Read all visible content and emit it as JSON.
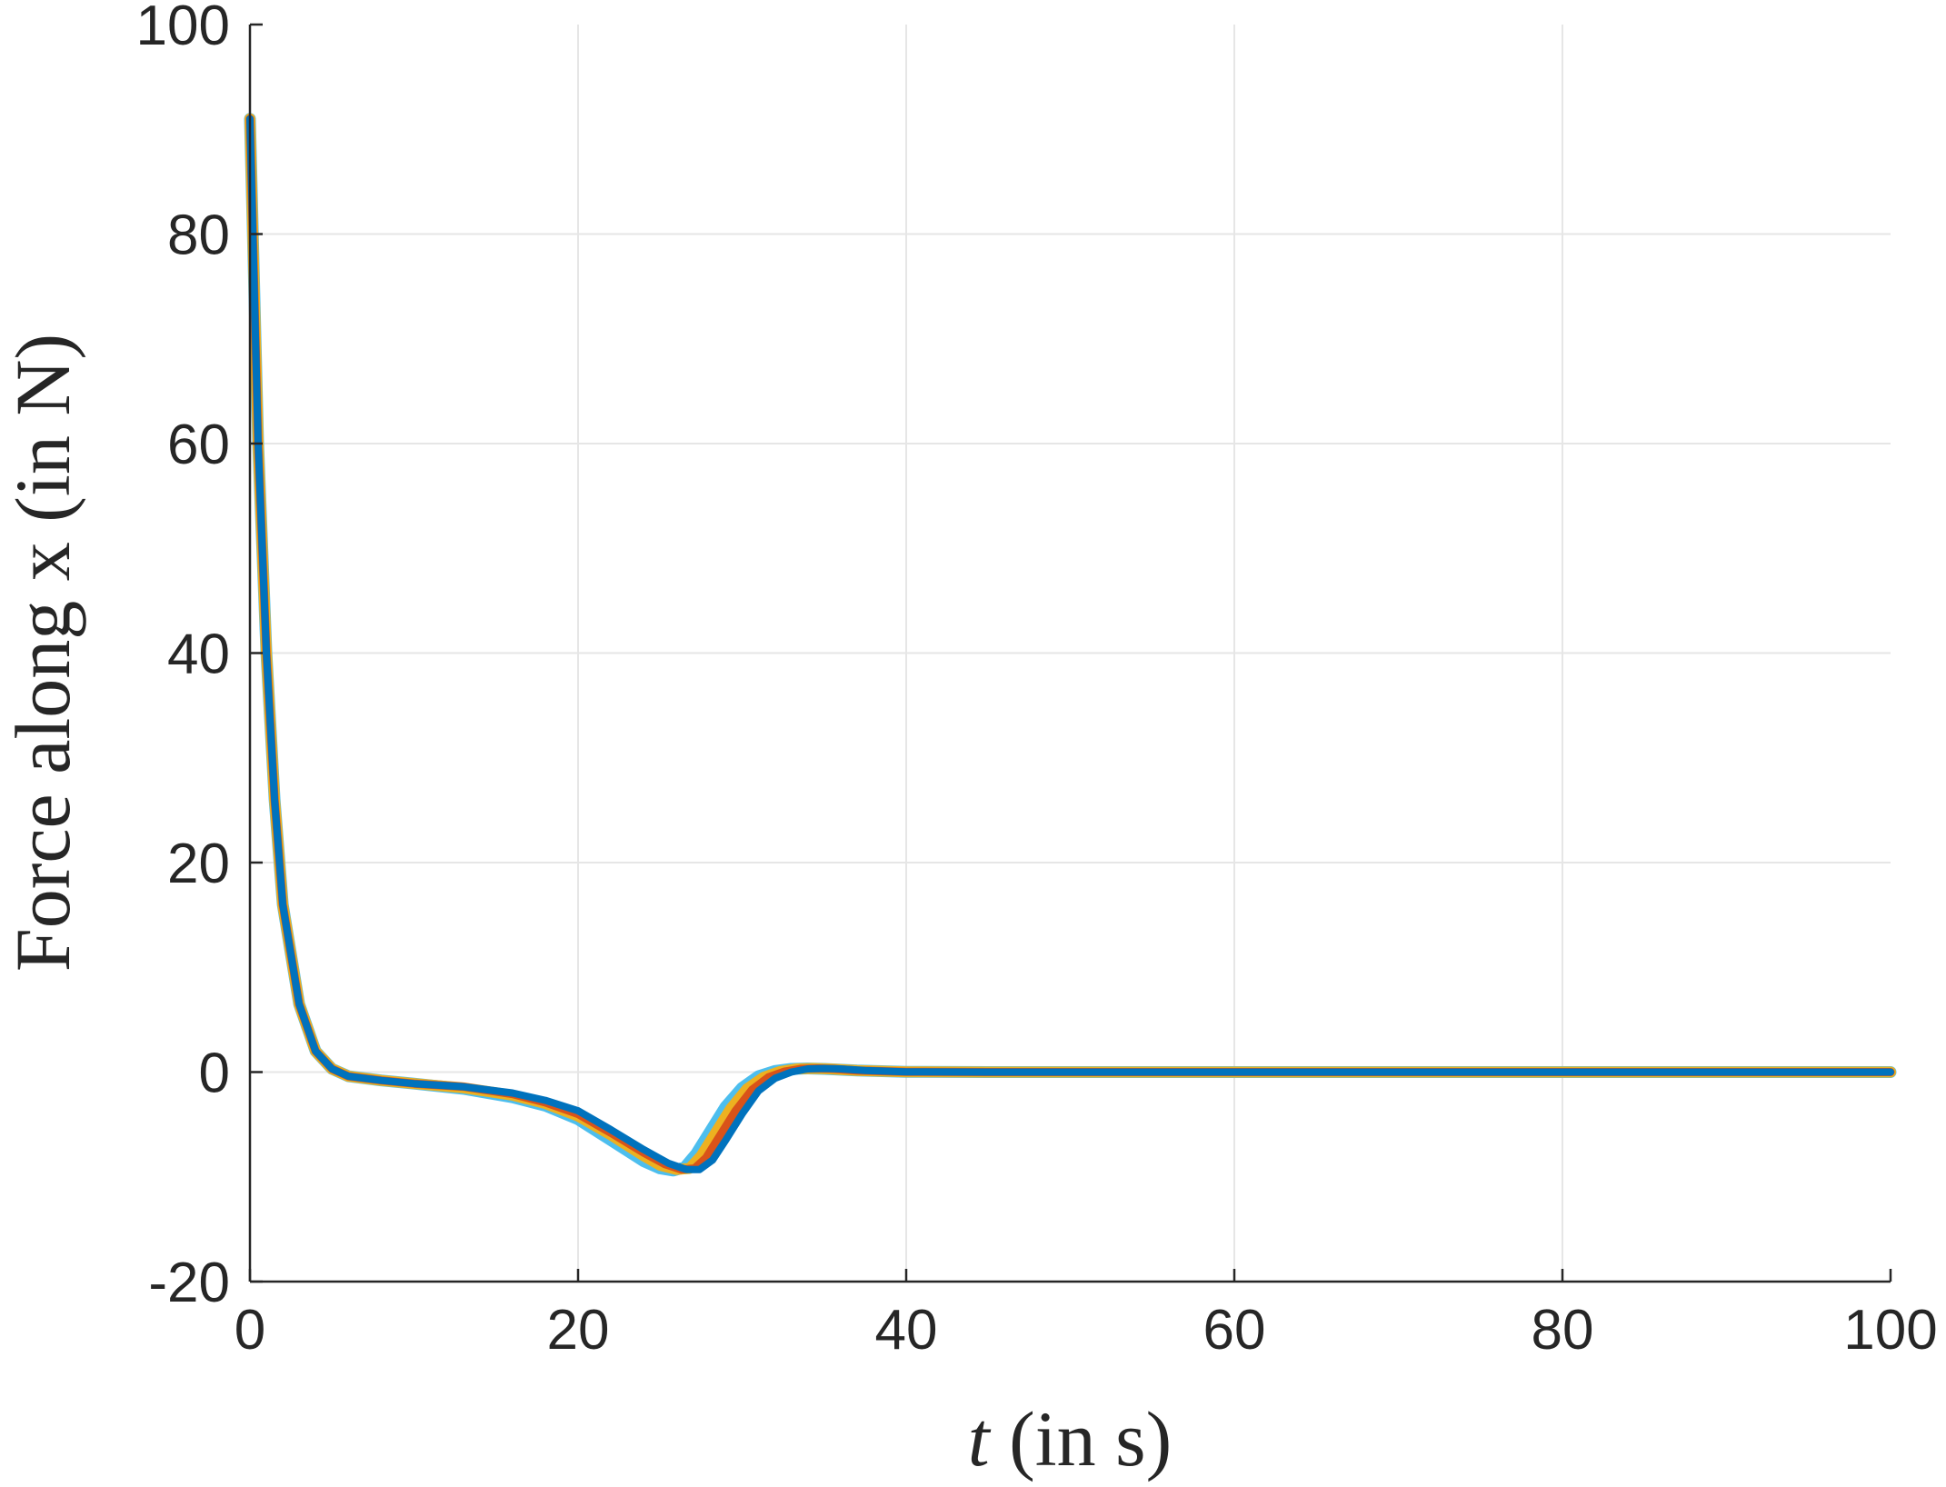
{
  "chart_data": {
    "type": "line",
    "title": "",
    "xlabel_italic": "t",
    "xlabel_rest": " (in s)",
    "ylabel": "Force along x (in N)",
    "xlim": [
      0,
      100
    ],
    "ylim": [
      -20,
      100
    ],
    "xticks": [
      0,
      20,
      40,
      60,
      80,
      100
    ],
    "yticks": [
      -20,
      0,
      20,
      40,
      60,
      80,
      100
    ],
    "xtick_labels": [
      "0",
      "20",
      "40",
      "60",
      "80",
      "100"
    ],
    "ytick_labels": [
      "-20",
      "0",
      "20",
      "40",
      "60",
      "80",
      "100"
    ],
    "grid": true,
    "legend": "none",
    "series": [
      {
        "color": "#4DBEEE",
        "x": [
          0,
          0.5,
          1,
          1.5,
          2,
          3,
          4,
          5,
          6,
          8,
          10,
          13,
          16,
          18,
          20,
          22,
          24,
          25,
          25.8,
          26.5,
          27.2,
          28,
          29,
          30,
          31,
          32,
          33,
          34,
          35,
          37,
          40,
          45,
          50,
          60,
          70,
          80,
          90,
          100
        ],
        "y": [
          91,
          60,
          40,
          26,
          16,
          6.5,
          2,
          0.3,
          -0.4,
          -0.8,
          -1.1,
          -1.6,
          -2.4,
          -3.2,
          -4.5,
          -6.5,
          -8.5,
          -9.2,
          -9.4,
          -9.1,
          -7.8,
          -5.8,
          -3.3,
          -1.5,
          -0.4,
          0.1,
          0.3,
          0.35,
          0.3,
          0.15,
          0.03,
          0,
          0,
          0,
          0,
          0,
          0,
          0
        ]
      },
      {
        "color": "#EDB120",
        "x": [
          0,
          0.5,
          1,
          1.5,
          2,
          3,
          4,
          5,
          6,
          8,
          10,
          13,
          16,
          18,
          20,
          22,
          24,
          25,
          26,
          26.8,
          27.5,
          28.3,
          29.3,
          30.3,
          31.3,
          32.3,
          33.3,
          34.3,
          35.3,
          37,
          40,
          45,
          50,
          60,
          70,
          80,
          90,
          100
        ],
        "y": [
          91,
          60,
          40,
          26,
          16,
          6.5,
          2,
          0.3,
          -0.4,
          -0.8,
          -1.1,
          -1.5,
          -2.2,
          -3.0,
          -4.2,
          -6.0,
          -8.0,
          -8.9,
          -9.3,
          -9.2,
          -8.0,
          -6.0,
          -3.5,
          -1.6,
          -0.5,
          0.05,
          0.3,
          0.35,
          0.3,
          0.15,
          0.03,
          0,
          0,
          0,
          0,
          0,
          0,
          0
        ]
      },
      {
        "color": "#D95319",
        "x": [
          0,
          0.5,
          1,
          1.5,
          2,
          3,
          4,
          5,
          6,
          8,
          10,
          13,
          16,
          18,
          20,
          22,
          24,
          25.3,
          26.3,
          27.1,
          27.8,
          28.6,
          29.6,
          30.6,
          31.6,
          32.6,
          33.6,
          34.6,
          35.6,
          37,
          40,
          45,
          50,
          60,
          70,
          80,
          90,
          100
        ],
        "y": [
          91,
          60,
          40,
          26,
          16,
          6.5,
          2,
          0.3,
          -0.4,
          -0.8,
          -1.1,
          -1.4,
          -2.1,
          -2.9,
          -4.0,
          -5.8,
          -7.7,
          -8.8,
          -9.3,
          -9.2,
          -8.2,
          -6.2,
          -3.7,
          -1.7,
          -0.5,
          0.05,
          0.3,
          0.35,
          0.3,
          0.15,
          0.03,
          0,
          0,
          0,
          0,
          0,
          0,
          0
        ]
      },
      {
        "color": "#0072BD",
        "x": [
          0,
          0.5,
          1,
          1.5,
          2,
          3,
          4,
          5,
          6,
          8,
          10,
          13,
          16,
          18,
          20,
          22,
          24,
          25.5,
          26.6,
          27.4,
          28.2,
          29,
          30,
          31,
          32,
          33,
          34,
          35,
          36,
          37.5,
          40,
          45,
          50,
          60,
          70,
          80,
          90,
          100
        ],
        "y": [
          91,
          60,
          40,
          26,
          16,
          6.5,
          2,
          0.3,
          -0.4,
          -0.8,
          -1.1,
          -1.4,
          -2.0,
          -2.7,
          -3.7,
          -5.5,
          -7.4,
          -8.7,
          -9.3,
          -9.3,
          -8.4,
          -6.5,
          -4.0,
          -1.8,
          -0.6,
          0.0,
          0.3,
          0.35,
          0.3,
          0.15,
          0.03,
          0,
          0,
          0,
          0,
          0,
          0,
          0
        ]
      }
    ]
  }
}
